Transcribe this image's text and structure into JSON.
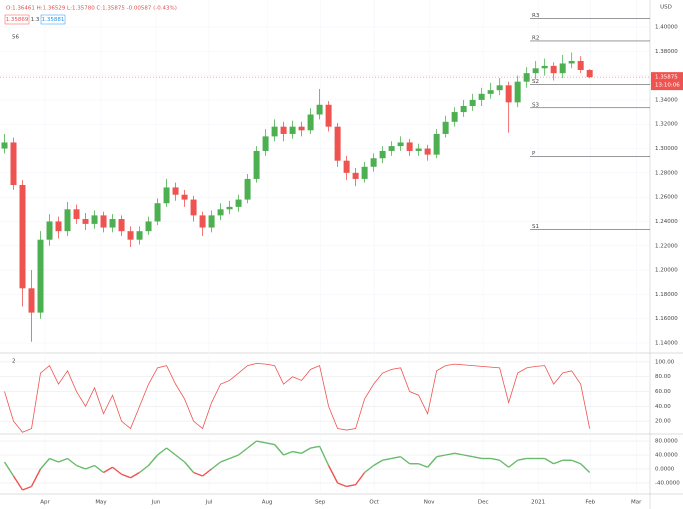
{
  "header": {
    "ohlc": "O:1.36461 H:1.36529 L:1.35780 C:1.35875 -0.00587 (-0.43%)",
    "sell": "1.35869",
    "spread": "1.3",
    "buy": "1.35881",
    "currency": "USD",
    "time": "13:10:06"
  },
  "chart_data": [
    {
      "type": "candlestick",
      "label": "56",
      "categories": [
        null,
        null,
        null,
        null,
        null,
        null,
        null,
        null,
        null,
        null,
        null,
        null,
        null,
        null,
        null,
        null,
        null,
        null,
        null,
        null,
        null,
        null,
        null,
        null,
        null,
        null,
        null,
        null,
        null,
        null,
        null,
        null,
        null,
        null,
        null,
        null,
        null,
        null,
        null,
        null,
        null,
        null,
        null,
        null,
        null,
        null,
        null,
        null,
        null,
        null,
        null,
        null,
        null,
        null,
        null,
        null,
        null,
        null,
        null,
        null,
        null,
        null,
        null,
        null,
        null,
        null
      ],
      "open": [
        1.3,
        1.305,
        1.27,
        1.185,
        1.165,
        1.225,
        1.24,
        1.232,
        1.25,
        1.242,
        1.238,
        1.245,
        1.235,
        1.242,
        1.232,
        1.225,
        1.232,
        1.24,
        1.255,
        1.268,
        1.262,
        1.258,
        1.245,
        1.235,
        1.245,
        1.25,
        1.252,
        1.258,
        1.275,
        1.298,
        1.31,
        1.318,
        1.312,
        1.318,
        1.315,
        1.328,
        1.336,
        1.318,
        1.29,
        1.28,
        1.275,
        1.285,
        1.292,
        1.298,
        1.302,
        1.305,
        1.298,
        1.3,
        1.295,
        1.312,
        1.322,
        1.33,
        1.335,
        1.34,
        1.345,
        1.348,
        1.352,
        1.338,
        1.355,
        1.362,
        1.366,
        1.368,
        1.362,
        1.37,
        1.372,
        1.36461
      ],
      "high": [
        1.312,
        1.309,
        1.274,
        1.2,
        1.232,
        1.246,
        1.244,
        1.256,
        1.254,
        1.247,
        1.249,
        1.248,
        1.246,
        1.245,
        1.236,
        1.236,
        1.244,
        1.259,
        1.275,
        1.272,
        1.266,
        1.261,
        1.248,
        1.249,
        1.255,
        1.257,
        1.262,
        1.279,
        1.302,
        1.316,
        1.324,
        1.322,
        1.323,
        1.322,
        1.333,
        1.349,
        1.339,
        1.321,
        1.294,
        1.284,
        1.289,
        1.296,
        1.302,
        1.306,
        1.31,
        1.308,
        1.304,
        1.303,
        1.316,
        1.327,
        1.334,
        1.34,
        1.345,
        1.35,
        1.354,
        1.358,
        1.355,
        1.36,
        1.367,
        1.372,
        1.374,
        1.371,
        1.377,
        1.379,
        1.376,
        1.36529
      ],
      "low": [
        1.296,
        1.266,
        1.17,
        1.141,
        1.16,
        1.22,
        1.226,
        1.228,
        1.238,
        1.233,
        1.234,
        1.231,
        1.231,
        1.228,
        1.219,
        1.221,
        1.229,
        1.237,
        1.252,
        1.257,
        1.252,
        1.24,
        1.228,
        1.231,
        1.241,
        1.246,
        1.248,
        1.255,
        1.272,
        1.294,
        1.306,
        1.306,
        1.308,
        1.31,
        1.312,
        1.324,
        1.314,
        1.285,
        1.274,
        1.269,
        1.272,
        1.281,
        1.288,
        1.294,
        1.298,
        1.294,
        1.294,
        1.29,
        1.292,
        1.309,
        1.318,
        1.326,
        1.331,
        1.335,
        1.341,
        1.344,
        1.313,
        1.334,
        1.35,
        1.357,
        1.36,
        1.356,
        1.358,
        1.366,
        1.362,
        1.3578
      ],
      "close": [
        1.305,
        1.27,
        1.185,
        1.165,
        1.225,
        1.24,
        1.232,
        1.25,
        1.242,
        1.238,
        1.245,
        1.235,
        1.242,
        1.232,
        1.225,
        1.232,
        1.24,
        1.255,
        1.268,
        1.262,
        1.258,
        1.245,
        1.235,
        1.245,
        1.25,
        1.252,
        1.258,
        1.275,
        1.298,
        1.31,
        1.318,
        1.312,
        1.318,
        1.315,
        1.328,
        1.336,
        1.318,
        1.29,
        1.28,
        1.275,
        1.285,
        1.292,
        1.298,
        1.302,
        1.305,
        1.298,
        1.3,
        1.295,
        1.312,
        1.322,
        1.33,
        1.335,
        1.34,
        1.345,
        1.348,
        1.352,
        1.338,
        1.355,
        1.362,
        1.366,
        1.368,
        1.362,
        1.37,
        1.372,
        1.36461,
        1.35875
      ],
      "up_color": "#4caf50",
      "down_color": "#ef5350",
      "last": {
        "value": 1.35875,
        "label": "1.35875"
      },
      "levels": [
        {
          "name": "R3",
          "value": 1.4068
        },
        {
          "name": "R2",
          "value": 1.3885
        },
        {
          "name": "S2",
          "value": 1.3525
        },
        {
          "name": "S3",
          "value": 1.3335
        },
        {
          "name": "P",
          "value": 1.2935
        },
        {
          "name": "S1",
          "value": 1.2335
        }
      ],
      "ylim": [
        1.1326,
        1.4222
      ],
      "yticks": [
        {
          "value": 1.14,
          "label": "1.14000"
        },
        {
          "value": 1.16,
          "label": "1.16000"
        },
        {
          "value": 1.18,
          "label": "1.18000"
        },
        {
          "value": 1.2,
          "label": "1.20000"
        },
        {
          "value": 1.22,
          "label": "1.22000"
        },
        {
          "value": 1.24,
          "label": "1.24000"
        },
        {
          "value": 1.26,
          "label": "1.26000"
        },
        {
          "value": 1.28,
          "label": "1.28000"
        },
        {
          "value": 1.3,
          "label": "1.30000"
        },
        {
          "value": 1.32,
          "label": "1.32000"
        },
        {
          "value": 1.34,
          "label": "1.34000"
        },
        {
          "value": 1.36,
          "label": "1.36000"
        },
        {
          "value": 1.38,
          "label": "1.38000"
        },
        {
          "value": 1.4,
          "label": "1.40000"
        }
      ],
      "xlim": [
        -0.5,
        71.7
      ],
      "xticks": [
        {
          "value": 4.5,
          "label": "Apr"
        },
        {
          "value": 10.72,
          "label": "May"
        },
        {
          "value": 16.83,
          "label": "Jun"
        },
        {
          "value": 22.72,
          "label": "Jul"
        },
        {
          "value": 29.17,
          "label": "Aug"
        },
        {
          "value": 35.06,
          "label": "Sep"
        },
        {
          "value": 41.06,
          "label": "Oct"
        },
        {
          "value": 47.17,
          "label": "Nov"
        },
        {
          "value": 53.17,
          "label": "Dec"
        },
        {
          "value": 59.28,
          "label": "2021"
        },
        {
          "value": 65.06,
          "label": "Feb"
        },
        {
          "value": 70.17,
          "label": "Mar"
        }
      ]
    },
    {
      "type": "line",
      "label": "2",
      "color": "#ef5350",
      "values": [
        60,
        20,
        5,
        10,
        85,
        95,
        70,
        88,
        60,
        40,
        65,
        30,
        55,
        20,
        10,
        40,
        70,
        92,
        95,
        70,
        50,
        20,
        10,
        45,
        70,
        75,
        85,
        95,
        98,
        97,
        95,
        70,
        80,
        75,
        90,
        95,
        40,
        10,
        8,
        10,
        50,
        70,
        85,
        90,
        92,
        60,
        55,
        30,
        88,
        95,
        97,
        96,
        95,
        94,
        93,
        92,
        45,
        85,
        92,
        94,
        95,
        70,
        85,
        88,
        70,
        10
      ],
      "ylim": [
        4,
        108
      ],
      "xlim": [
        -0.5,
        71.7
      ],
      "yticks": [
        {
          "value": 100,
          "label": "100.00"
        },
        {
          "value": 80,
          "label": "80.00"
        },
        {
          "value": 60,
          "label": "60.00"
        },
        {
          "value": 40,
          "label": "40.00"
        },
        {
          "value": 20,
          "label": "20.00"
        }
      ]
    },
    {
      "type": "signed-line",
      "pos_color": "#66bb6a",
      "neg_color": "#ef5350",
      "values": [
        20,
        -20,
        -60,
        -50,
        0,
        30,
        20,
        30,
        10,
        0,
        10,
        -10,
        5,
        -15,
        -25,
        -10,
        10,
        40,
        60,
        40,
        20,
        -10,
        -20,
        0,
        20,
        30,
        40,
        60,
        80,
        75,
        70,
        40,
        50,
        45,
        60,
        65,
        10,
        -40,
        -50,
        -45,
        -10,
        10,
        25,
        30,
        35,
        15,
        15,
        5,
        35,
        40,
        45,
        40,
        35,
        30,
        30,
        25,
        5,
        25,
        30,
        30,
        30,
        15,
        25,
        25,
        15,
        -10
      ],
      "ylim": [
        -68.6,
        94.3
      ],
      "xlim": [
        -0.5,
        71.7
      ],
      "yticks": [
        {
          "value": 80,
          "label": "80.0000"
        },
        {
          "value": 40,
          "label": "40.0000"
        },
        {
          "value": 0,
          "label": "0.0000"
        },
        {
          "value": -40,
          "label": "-40.0000"
        }
      ]
    }
  ]
}
